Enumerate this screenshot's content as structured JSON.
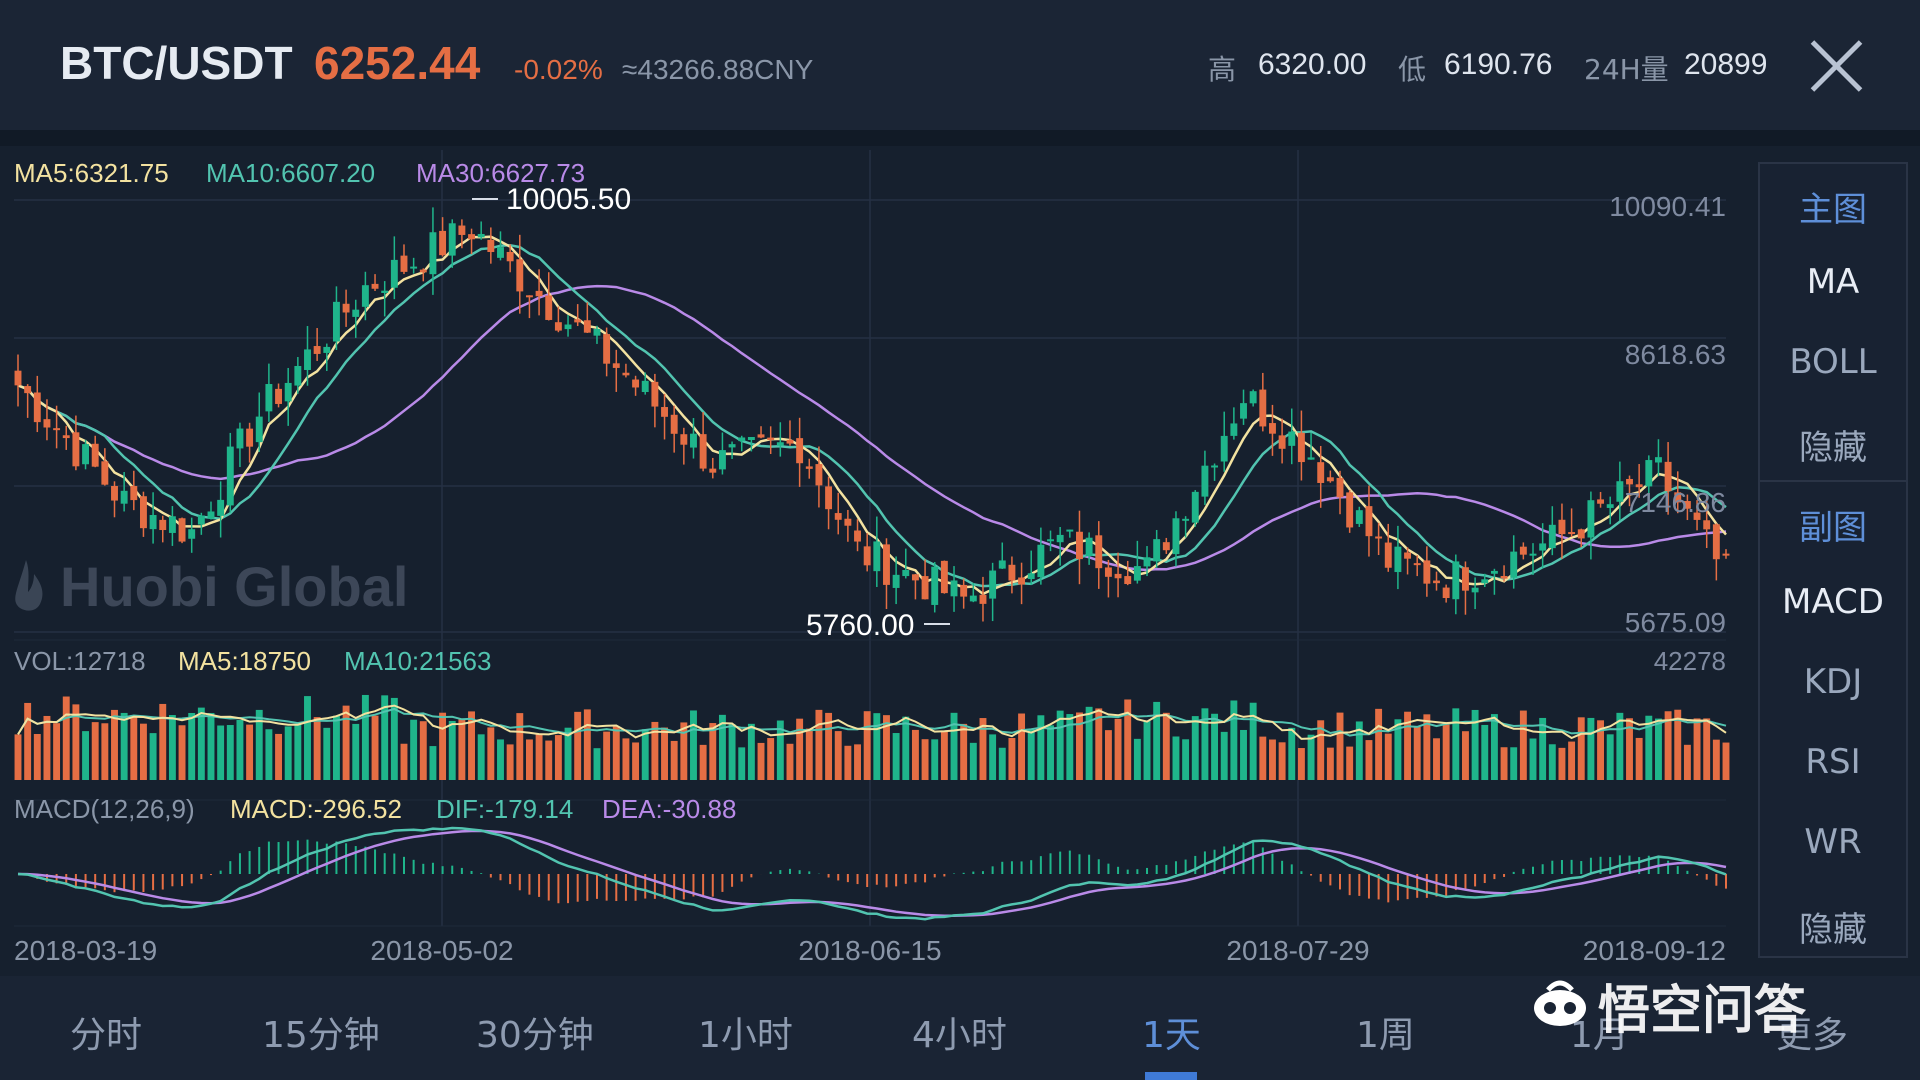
{
  "header": {
    "pair": "BTC/USDT",
    "price": "6252.44",
    "change": "-0.02%",
    "cny": "≈43266.88CNY",
    "high_label": "高",
    "high_value": "6320.00",
    "low_label": "低",
    "low_value": "6190.76",
    "vol_label": "24H量",
    "vol_value": "20899"
  },
  "main_chart": {
    "ma5": "MA5:6321.75",
    "ma10": "MA10:6607.20",
    "ma30": "MA30:6627.73",
    "max_label": "10005.50",
    "min_label": "5760.00",
    "y_ticks": [
      "10090.41",
      "8618.63",
      "7146.86",
      "5675.09"
    ],
    "watermark": "Huobi Global"
  },
  "vol_chart": {
    "vol": "VOL:12718",
    "ma5": "MA5:18750",
    "ma10": "MA10:21563",
    "max": "42278"
  },
  "macd_chart": {
    "title": "MACD(12,26,9)",
    "macd": "MACD:-296.52",
    "dif": "DIF:-179.14",
    "dea": "DEA:-30.88"
  },
  "x_dates": [
    "2018-03-19",
    "2018-05-02",
    "2018-06-15",
    "2018-07-29",
    "2018-09-12"
  ],
  "side_panel": {
    "main_head": "主图",
    "main_items": [
      "MA",
      "BOLL",
      "隐藏"
    ],
    "sub_head": "副图",
    "sub_items": [
      "MACD",
      "KDJ",
      "RSI",
      "WR",
      "隐藏"
    ]
  },
  "tabs": [
    "分时",
    "15分钟",
    "30分钟",
    "1小时",
    "4小时",
    "1天",
    "1周",
    "1月",
    "更多"
  ],
  "active_tab": "1天",
  "watermark_text": "悟空问答",
  "colors": {
    "up": "#1fb58b",
    "down": "#e56e44",
    "ma5": "#f3e2a0",
    "ma10": "#52c4b0",
    "ma30": "#b98ae8",
    "accent": "#3f7ad6"
  },
  "chart_data": {
    "type": "candlestick",
    "y_range": [
      5675.09,
      10090.41
    ],
    "anchors": [
      {
        "date": "2018-03-19",
        "close": 8200
      },
      {
        "date": "2018-03-30",
        "close": 7000
      },
      {
        "date": "2018-04-06",
        "close": 6700
      },
      {
        "date": "2018-04-13",
        "close": 7900
      },
      {
        "date": "2018-04-24",
        "close": 9200
      },
      {
        "date": "2018-05-05",
        "close": 9800
      },
      {
        "date": "2018-05-09",
        "close": 9400
      },
      {
        "date": "2018-05-20",
        "close": 8400
      },
      {
        "date": "2018-05-30",
        "close": 7400
      },
      {
        "date": "2018-06-08",
        "close": 7600
      },
      {
        "date": "2018-06-14",
        "close": 6500
      },
      {
        "date": "2018-06-25",
        "close": 6000
      },
      {
        "date": "2018-07-05",
        "close": 6600
      },
      {
        "date": "2018-07-14",
        "close": 6300
      },
      {
        "date": "2018-07-24",
        "close": 8100
      },
      {
        "date": "2018-07-31",
        "close": 7500
      },
      {
        "date": "2018-08-08",
        "close": 6400
      },
      {
        "date": "2018-08-14",
        "close": 6200
      },
      {
        "date": "2018-08-25",
        "close": 6600
      },
      {
        "date": "2018-09-05",
        "close": 7300
      },
      {
        "date": "2018-09-12",
        "close": 6250
      }
    ]
  }
}
